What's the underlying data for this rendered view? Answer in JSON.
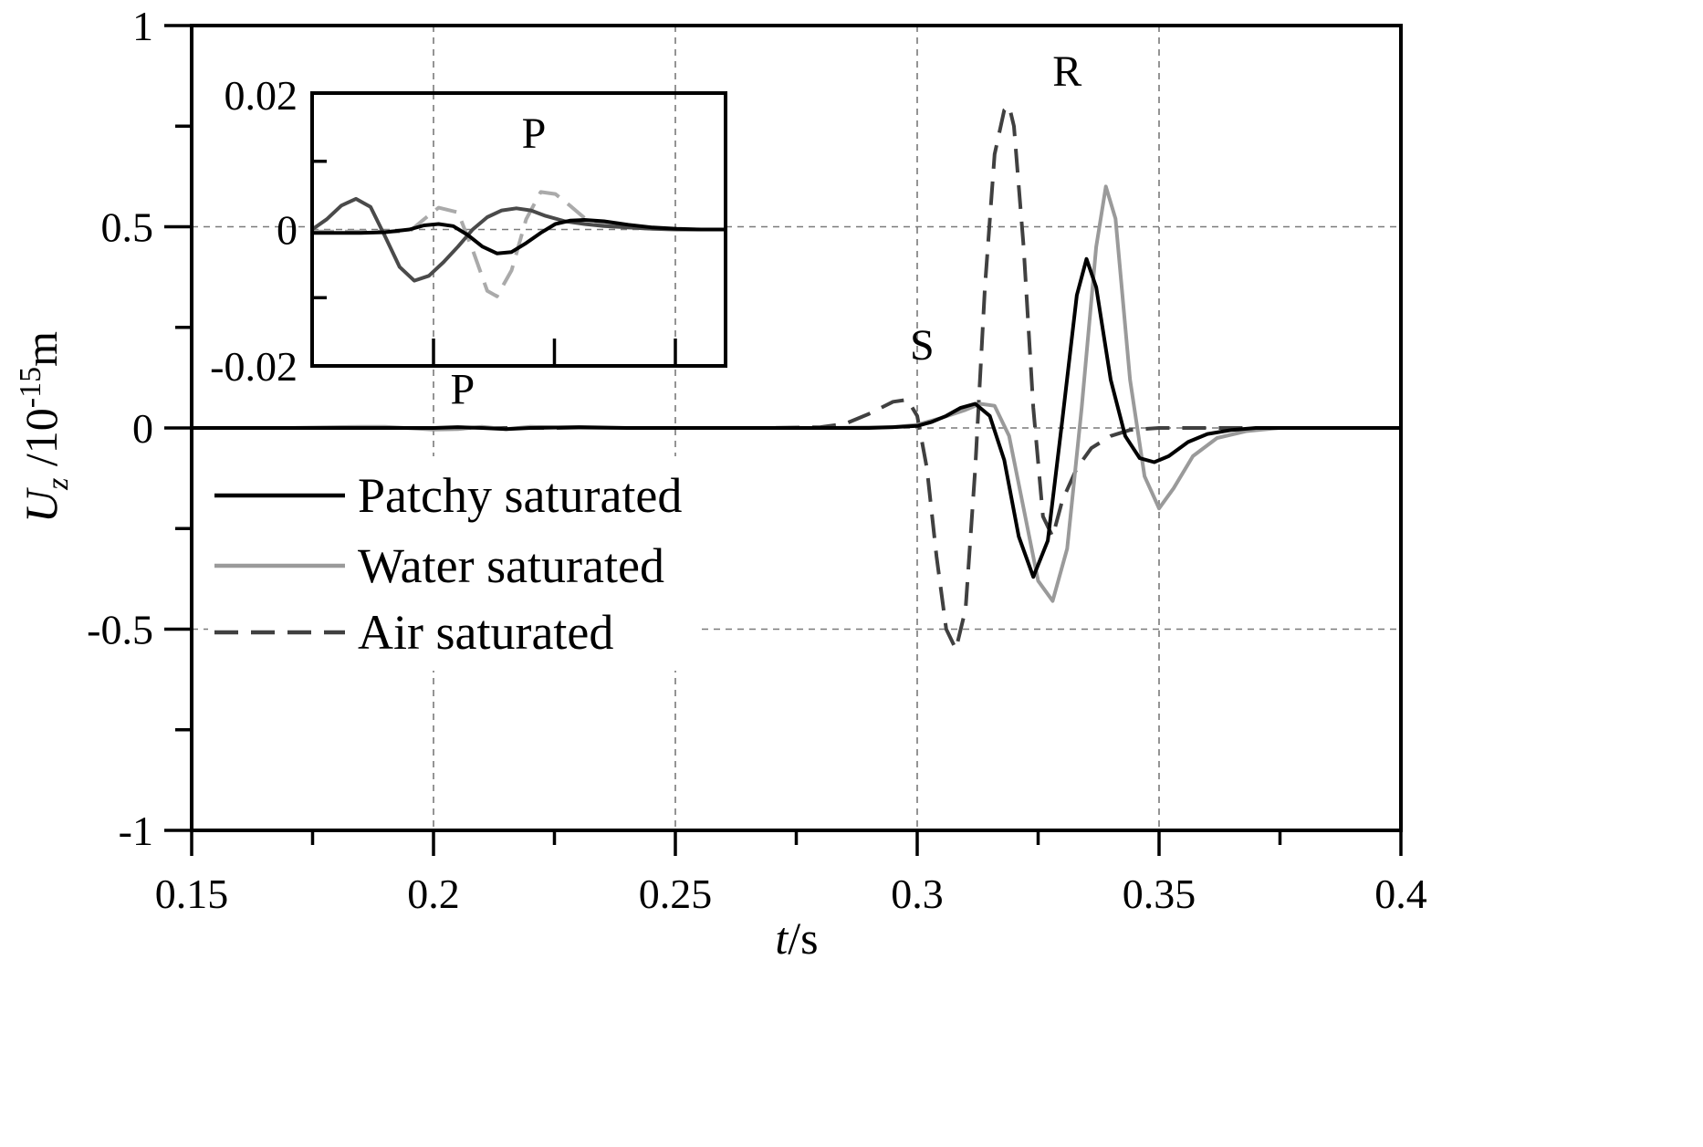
{
  "chart_data": [
    {
      "type": "line",
      "xlabel": {
        "italic": "t",
        "rest": "/s"
      },
      "ylabel": {
        "italic": "U",
        "sub": "z",
        "rest": " /10",
        "sup": "-15",
        "unit": "m"
      },
      "xlim": [
        0.15,
        0.4
      ],
      "ylim": [
        -1,
        1
      ],
      "x_ticks": [
        "0.15",
        "0.2",
        "0.25",
        "0.3",
        "0.35",
        "0.4"
      ],
      "y_ticks": [
        "1",
        "0.5",
        "0",
        "-0.5",
        "-1"
      ],
      "grid": true,
      "legend": "left",
      "annotations": [
        {
          "text": "P",
          "x": 0.206,
          "y": 0.06
        },
        {
          "text": "S",
          "x": 0.301,
          "y": 0.17
        },
        {
          "text": "R",
          "x": 0.331,
          "y": 0.85
        }
      ],
      "series": [
        {
          "name": "Patchy saturated",
          "color": "#000000",
          "dash": "solid",
          "x": [
            0.15,
            0.17,
            0.19,
            0.2,
            0.205,
            0.21,
            0.215,
            0.22,
            0.23,
            0.24,
            0.25,
            0.26,
            0.27,
            0.28,
            0.29,
            0.295,
            0.3,
            0.303,
            0.306,
            0.309,
            0.312,
            0.315,
            0.318,
            0.321,
            0.324,
            0.327,
            0.33,
            0.333,
            0.335,
            0.337,
            0.34,
            0.343,
            0.346,
            0.349,
            0.352,
            0.356,
            0.36,
            0.365,
            0.37,
            0.38,
            0.4
          ],
          "y": [
            0,
            0,
            0,
            0,
            0.002,
            0,
            -0.003,
            0,
            0.002,
            0,
            0,
            0,
            0,
            0,
            0,
            0.002,
            0.005,
            0.015,
            0.03,
            0.05,
            0.06,
            0.03,
            -0.08,
            -0.27,
            -0.37,
            -0.28,
            0.02,
            0.33,
            0.42,
            0.35,
            0.12,
            -0.02,
            -0.075,
            -0.085,
            -0.07,
            -0.035,
            -0.015,
            -0.005,
            0,
            0,
            0
          ]
        },
        {
          "name": "Water saturated",
          "color": "#9a9a9a",
          "dash": "solid",
          "x": [
            0.15,
            0.17,
            0.185,
            0.19,
            0.2,
            0.205,
            0.21,
            0.215,
            0.22,
            0.23,
            0.24,
            0.25,
            0.26,
            0.28,
            0.295,
            0.3,
            0.305,
            0.31,
            0.313,
            0.316,
            0.319,
            0.322,
            0.325,
            0.328,
            0.331,
            0.334,
            0.337,
            0.339,
            0.341,
            0.344,
            0.347,
            0.35,
            0.353,
            0.357,
            0.362,
            0.368,
            0.375,
            0.4
          ],
          "y": [
            0,
            0,
            0.003,
            0.003,
            -0.004,
            -0.003,
            0.003,
            -0.003,
            0.003,
            0,
            0,
            0,
            0,
            0,
            0.002,
            0.008,
            0.025,
            0.045,
            0.06,
            0.055,
            -0.02,
            -0.2,
            -0.38,
            -0.43,
            -0.3,
            0.05,
            0.45,
            0.6,
            0.52,
            0.12,
            -0.12,
            -0.2,
            -0.15,
            -0.07,
            -0.025,
            -0.008,
            0,
            0
          ]
        },
        {
          "name": "Air saturated",
          "color": "#404040",
          "dash": "dashed",
          "x": [
            0.15,
            0.2,
            0.25,
            0.27,
            0.28,
            0.285,
            0.29,
            0.295,
            0.298,
            0.3,
            0.302,
            0.304,
            0.306,
            0.308,
            0.31,
            0.312,
            0.314,
            0.316,
            0.318,
            0.319,
            0.32,
            0.322,
            0.324,
            0.326,
            0.328,
            0.33,
            0.333,
            0.336,
            0.34,
            0.344,
            0.35,
            0.36,
            0.4
          ],
          "y": [
            0,
            0,
            0,
            0,
            0.002,
            0.01,
            0.035,
            0.065,
            0.07,
            0.03,
            -0.1,
            -0.32,
            -0.5,
            -0.55,
            -0.45,
            -0.1,
            0.35,
            0.68,
            0.79,
            0.8,
            0.75,
            0.45,
            0.05,
            -0.22,
            -0.27,
            -0.18,
            -0.1,
            -0.05,
            -0.02,
            -0.005,
            0,
            0,
            0
          ]
        }
      ]
    },
    {
      "type": "line",
      "inset": true,
      "annotations": [
        {
          "text": "P"
        }
      ],
      "xlim": [
        0.18,
        0.265
      ],
      "ylim": [
        -0.02,
        0.02
      ],
      "y_ticks": [
        "0.02",
        "0",
        "-0.02"
      ],
      "grid": true,
      "series": [
        {
          "name": "Patchy saturated",
          "color": "#000000",
          "dash": "solid",
          "x": [
            0.18,
            0.19,
            0.195,
            0.2,
            0.203,
            0.206,
            0.209,
            0.212,
            0.215,
            0.218,
            0.221,
            0.224,
            0.227,
            0.23,
            0.233,
            0.236,
            0.24,
            0.245,
            0.25,
            0.255,
            0.26,
            0.265
          ],
          "y": [
            -0.0005,
            -0.0005,
            -0.0004,
            0,
            0.0006,
            0.0008,
            0.0005,
            -0.0008,
            -0.0025,
            -0.0035,
            -0.0033,
            -0.002,
            -0.0005,
            0.0008,
            0.0013,
            0.0014,
            0.0012,
            0.0007,
            0.0003,
            0.0001,
            0,
            0
          ]
        },
        {
          "name": "Water saturated",
          "color": "#aaaaaa",
          "dash": "dashed",
          "x": [
            0.18,
            0.2,
            0.203,
            0.206,
            0.21,
            0.213,
            0.216,
            0.218,
            0.221,
            0.224,
            0.227,
            0.23,
            0.233,
            0.236,
            0.24,
            0.245,
            0.25,
            0.255,
            0.26,
            0.265
          ],
          "y": [
            -0.0003,
            -0.0003,
            0.0015,
            0.0032,
            0.0025,
            -0.003,
            -0.009,
            -0.0098,
            -0.006,
            0.0015,
            0.0055,
            0.0052,
            0.0035,
            0.0017,
            0.0008,
            0.0003,
            0.0001,
            0,
            0,
            0
          ]
        },
        {
          "name": "Air saturated",
          "color": "#4a4a4a",
          "dash": "solid",
          "x": [
            0.18,
            0.183,
            0.186,
            0.189,
            0.192,
            0.195,
            0.198,
            0.201,
            0.204,
            0.207,
            0.21,
            0.213,
            0.216,
            0.219,
            0.222,
            0.225,
            0.228,
            0.232,
            0.236,
            0.24,
            0.245,
            0.25,
            0.255,
            0.26,
            0.265
          ],
          "y": [
            0,
            0.0015,
            0.0035,
            0.0045,
            0.0033,
            -0.001,
            -0.0055,
            -0.0075,
            -0.0068,
            -0.0048,
            -0.0025,
            0,
            0.0018,
            0.0028,
            0.0031,
            0.0028,
            0.002,
            0.0012,
            0.0008,
            0.0005,
            0.0003,
            0.0001,
            0,
            0,
            0
          ]
        }
      ]
    }
  ]
}
